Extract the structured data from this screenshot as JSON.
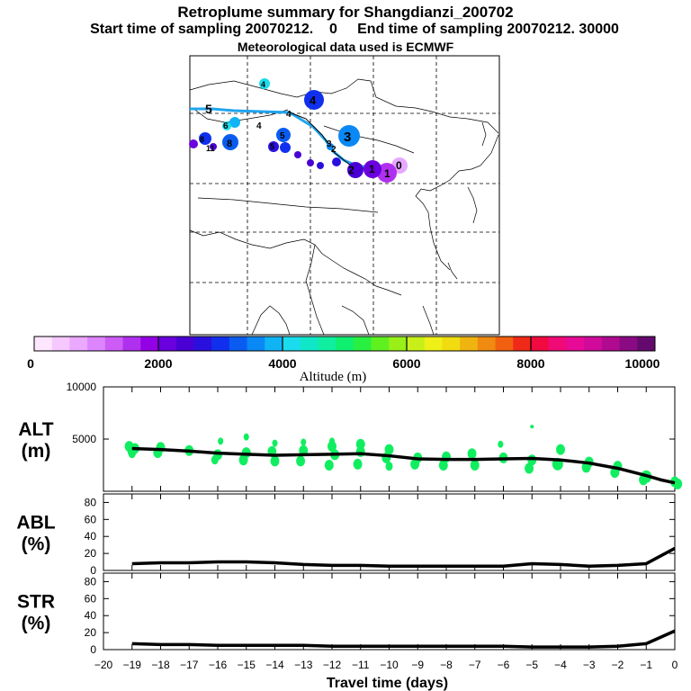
{
  "chart_data": {
    "type": "scatter",
    "title": "Retroplume summary for Shangdianzi_200702",
    "subtitle": "Start time of sampling 20070212.    0     End time of sampling 20070212. 30000",
    "subtitle2": "Meteorological data used is ECMWF",
    "colorbar": {
      "label": "Altitude  (m)",
      "ticks": [
        "0",
        "2000",
        "4000",
        "6000",
        "8000",
        "10000"
      ],
      "range": [
        0,
        10000
      ],
      "colors": [
        "#ffe6ff",
        "#f5c8ff",
        "#eba8ff",
        "#dd84ff",
        "#cc5cf5",
        "#b030ef",
        "#9400e6",
        "#6a00dd",
        "#4a00d4",
        "#2a10dd",
        "#1030ee",
        "#0a5cf0",
        "#0a88f5",
        "#10b4f5",
        "#1adcec",
        "#10e6c8",
        "#10eea0",
        "#10f070",
        "#28f040",
        "#60f020",
        "#98f018",
        "#c8f018",
        "#eef018",
        "#f0dc10",
        "#f0b410",
        "#f08a10",
        "#f06010",
        "#f02a18",
        "#f00a40",
        "#f00a78",
        "#e60a96",
        "#d00a9a",
        "#b00a90",
        "#8a0a84",
        "#640a6e"
      ]
    },
    "map": {
      "trajectory_numbers": [
        "0",
        "1",
        "1",
        "2",
        "2",
        "3",
        "3",
        "4",
        "4",
        "4",
        "4",
        "5",
        "5",
        "6",
        "8",
        "11",
        "8",
        "5"
      ]
    },
    "panels": [
      {
        "id": "alt",
        "label_line1": "ALT",
        "label_line2": "(m)",
        "ylim": [
          0,
          10000
        ],
        "yticks": [
          5000,
          10000
        ],
        "ytick_labels": [
          "5000",
          "10000"
        ],
        "mean_line": {
          "x": [
            -19,
            -18,
            -17,
            -16,
            -15,
            -14,
            -13,
            -12,
            -11,
            -10,
            -9,
            -8,
            -7,
            -6,
            -5,
            -4,
            -3,
            -2,
            -1,
            -0.5,
            0
          ],
          "y": [
            4100,
            4000,
            3850,
            3650,
            3550,
            3450,
            3500,
            3550,
            3600,
            3400,
            3100,
            3050,
            3050,
            3100,
            3150,
            3000,
            2700,
            2200,
            1500,
            1100,
            800
          ]
        },
        "points": {
          "x": [
            -19.1,
            -19,
            -18.9,
            -19,
            -18,
            -18.1,
            -17,
            -16,
            -16.1,
            -15.9,
            -15,
            -15.1,
            -15,
            -14.1,
            -14,
            -14,
            -13,
            -13.1,
            -13,
            -12,
            -12.1,
            -11.9,
            -12,
            -11,
            -11.1,
            -11,
            -10,
            -10.1,
            -10,
            -9,
            -9.1,
            -8,
            -8.1,
            -7.1,
            -7,
            -6,
            -6.1,
            -5,
            -5.1,
            -4,
            -4.1,
            -3,
            -3.1,
            -2,
            -2.1,
            -1,
            -1.1,
            0,
            0.1
          ],
          "y": [
            4300,
            3800,
            4100,
            3600,
            4200,
            3700,
            3900,
            3500,
            3000,
            4800,
            3700,
            3000,
            5200,
            3800,
            2900,
            4600,
            3900,
            2900,
            4700,
            4300,
            2500,
            3500,
            4800,
            4500,
            2600,
            3800,
            4000,
            3200,
            2400,
            3200,
            2600,
            3300,
            2500,
            3600,
            2500,
            3200,
            4500,
            3000,
            2200,
            4000,
            2600,
            2800,
            2300,
            2400,
            1800,
            1400,
            1100,
            900,
            700
          ],
          "r": [
            4,
            4,
            4,
            3,
            4,
            4,
            4,
            4,
            3,
            2,
            4,
            4,
            2,
            4,
            4,
            2,
            4,
            4,
            2,
            4,
            4,
            4,
            2,
            4,
            4,
            4,
            4,
            4,
            3,
            4,
            4,
            4,
            4,
            4,
            4,
            4,
            2,
            4,
            4,
            4,
            5,
            4,
            4,
            4,
            4,
            5,
            4,
            4,
            4
          ]
        },
        "lone_point": {
          "x": -5,
          "y": 6200
        }
      },
      {
        "id": "abl",
        "label_line1": "ABL",
        "label_line2": "(%)",
        "ylim": [
          0,
          90
        ],
        "yticks": [
          0,
          20,
          40,
          60,
          80
        ],
        "ytick_labels": [
          "0",
          "20",
          "40",
          "60",
          "80"
        ],
        "mean_line": {
          "x": [
            -19,
            -18,
            -17,
            -16,
            -15,
            -14,
            -13,
            -12,
            -11,
            -10,
            -9,
            -8,
            -7,
            -6,
            -5,
            -4,
            -3,
            -2,
            -1,
            0
          ],
          "y": [
            8,
            9,
            9,
            10,
            10,
            9,
            7,
            6,
            6,
            5,
            5,
            5,
            5,
            5,
            8,
            7,
            5,
            6,
            8,
            26
          ]
        }
      },
      {
        "id": "str",
        "label_line1": "STR",
        "label_line2": "(%)",
        "ylim": [
          0,
          90
        ],
        "yticks": [
          0,
          20,
          40,
          60,
          80
        ],
        "ytick_labels": [
          "0",
          "20",
          "40",
          "60",
          "80"
        ],
        "mean_line": {
          "x": [
            -19,
            -18,
            -17,
            -16,
            -15,
            -14,
            -13,
            -12,
            -11,
            -10,
            -9,
            -8,
            -7,
            -6,
            -5,
            -4,
            -3,
            -2,
            -1,
            0
          ],
          "y": [
            7,
            6,
            6,
            5,
            5,
            5,
            5,
            4,
            4,
            4,
            4,
            4,
            4,
            4,
            3,
            3,
            3,
            4,
            7,
            22
          ]
        }
      }
    ],
    "xaxis": {
      "label": "Travel time (days)",
      "xlim": [
        -20,
        0
      ],
      "ticks": [
        -20,
        -19,
        -18,
        -17,
        -16,
        -15,
        -14,
        -13,
        -12,
        -11,
        -10,
        -9,
        -8,
        -7,
        -6,
        -5,
        -4,
        -3,
        -2,
        -1,
        0
      ],
      "tick_labels": [
        "−20",
        "−19",
        "−18",
        "−17",
        "−16",
        "−15",
        "−14",
        "−13",
        "−12",
        "−11",
        "−10",
        "−9",
        "−8",
        "−7",
        "−6",
        "−5",
        "−4",
        "−3",
        "−2",
        "−1",
        "0"
      ]
    }
  }
}
